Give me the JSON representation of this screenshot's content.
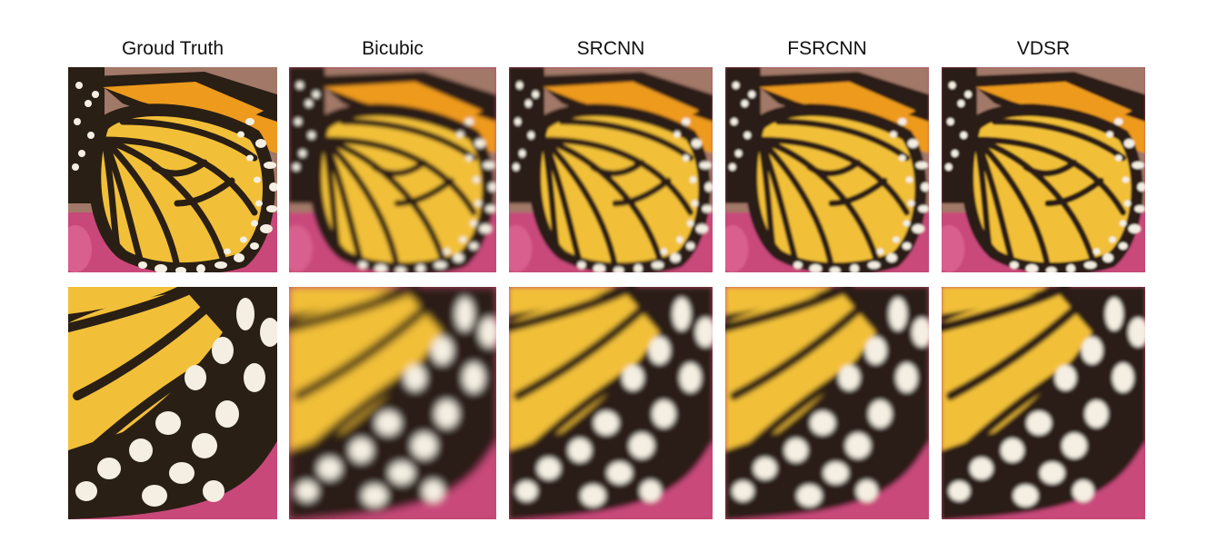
{
  "figure": {
    "columns": [
      {
        "label": "Groud Truth",
        "blur": 0
      },
      {
        "label": "Bicubic",
        "blur": 2.2
      },
      {
        "label": "SRCNN",
        "blur": 1.5
      },
      {
        "label": "FSRCNN",
        "blur": 1.3
      },
      {
        "label": "VDSR",
        "blur": 1.1
      }
    ],
    "rows": [
      "full",
      "zoom"
    ],
    "colors": {
      "wing_yellow": "#f2c038",
      "wing_orange": "#ee9a1c",
      "vein": "#2a1f14",
      "spot": "#f4efe2",
      "flower_pink": "#c8487a",
      "background": "#a27868"
    }
  }
}
